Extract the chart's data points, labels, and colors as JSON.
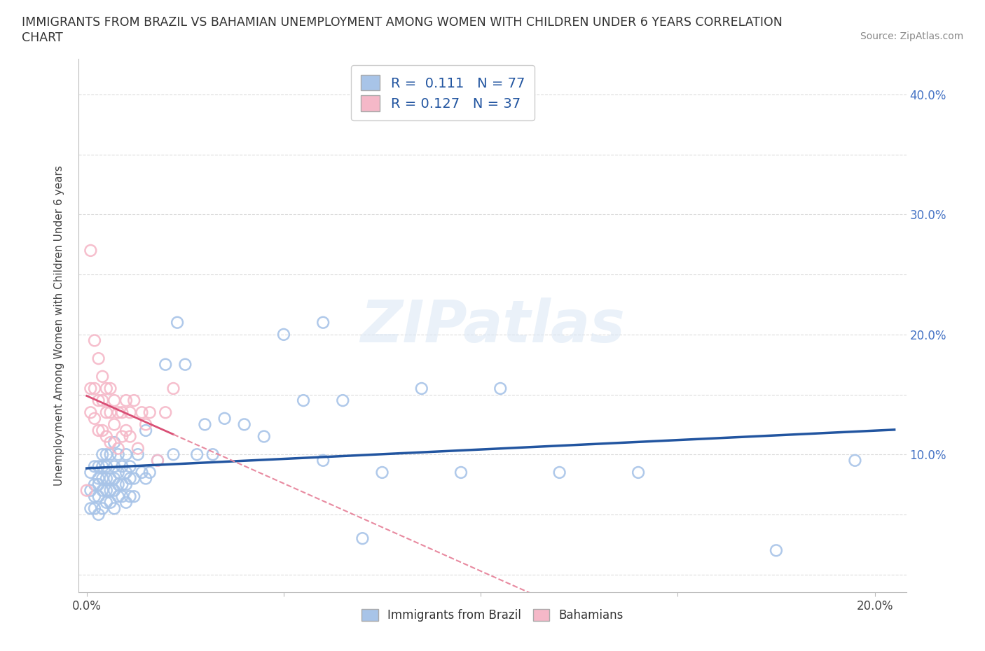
{
  "title_line1": "IMMIGRANTS FROM BRAZIL VS BAHAMIAN UNEMPLOYMENT AMONG WOMEN WITH CHILDREN UNDER 6 YEARS CORRELATION",
  "title_line2": "CHART",
  "source_text": "Source: ZipAtlas.com",
  "ylabel": "Unemployment Among Women with Children Under 6 years",
  "xlim": [
    -0.002,
    0.208
  ],
  "ylim": [
    -0.015,
    0.43
  ],
  "blue_color": "#a8c4e8",
  "pink_color": "#f5b8c8",
  "blue_line_color": "#2255a0",
  "pink_line_color": "#d94f75",
  "pink_dash_color": "#e88aa0",
  "grid_color": "#d8d8d8",
  "background_color": "#ffffff",
  "tick_label_color": "#4472c4",
  "R_blue": 0.111,
  "N_blue": 77,
  "R_pink": 0.127,
  "N_pink": 37,
  "legend_labels": [
    "Immigrants from Brazil",
    "Bahamians"
  ],
  "watermark": "ZIPatlas",
  "blue_scatter_x": [
    0.001,
    0.001,
    0.001,
    0.002,
    0.002,
    0.002,
    0.002,
    0.003,
    0.003,
    0.003,
    0.003,
    0.003,
    0.004,
    0.004,
    0.004,
    0.004,
    0.004,
    0.005,
    0.005,
    0.005,
    0.005,
    0.005,
    0.006,
    0.006,
    0.006,
    0.006,
    0.007,
    0.007,
    0.007,
    0.007,
    0.007,
    0.008,
    0.008,
    0.008,
    0.008,
    0.009,
    0.009,
    0.009,
    0.01,
    0.01,
    0.01,
    0.01,
    0.011,
    0.011,
    0.011,
    0.012,
    0.012,
    0.013,
    0.014,
    0.015,
    0.015,
    0.016,
    0.018,
    0.02,
    0.022,
    0.023,
    0.025,
    0.028,
    0.03,
    0.032,
    0.035,
    0.04,
    0.045,
    0.05,
    0.055,
    0.06,
    0.06,
    0.065,
    0.07,
    0.075,
    0.085,
    0.095,
    0.105,
    0.12,
    0.14,
    0.175,
    0.195
  ],
  "blue_scatter_y": [
    0.055,
    0.07,
    0.085,
    0.055,
    0.065,
    0.075,
    0.09,
    0.05,
    0.065,
    0.075,
    0.08,
    0.09,
    0.055,
    0.07,
    0.08,
    0.09,
    0.1,
    0.06,
    0.07,
    0.08,
    0.09,
    0.1,
    0.06,
    0.07,
    0.08,
    0.1,
    0.055,
    0.07,
    0.08,
    0.09,
    0.11,
    0.065,
    0.075,
    0.085,
    0.1,
    0.065,
    0.075,
    0.09,
    0.06,
    0.075,
    0.085,
    0.1,
    0.065,
    0.08,
    0.09,
    0.065,
    0.08,
    0.1,
    0.085,
    0.12,
    0.08,
    0.085,
    0.095,
    0.175,
    0.1,
    0.21,
    0.175,
    0.1,
    0.125,
    0.1,
    0.13,
    0.125,
    0.115,
    0.2,
    0.145,
    0.095,
    0.21,
    0.145,
    0.03,
    0.085,
    0.155,
    0.085,
    0.155,
    0.085,
    0.085,
    0.02,
    0.095
  ],
  "pink_scatter_x": [
    0.0,
    0.001,
    0.001,
    0.001,
    0.002,
    0.002,
    0.002,
    0.003,
    0.003,
    0.003,
    0.004,
    0.004,
    0.004,
    0.005,
    0.005,
    0.005,
    0.006,
    0.006,
    0.006,
    0.007,
    0.007,
    0.008,
    0.008,
    0.009,
    0.009,
    0.01,
    0.01,
    0.011,
    0.011,
    0.012,
    0.013,
    0.014,
    0.015,
    0.016,
    0.018,
    0.02,
    0.022
  ],
  "pink_scatter_y": [
    0.07,
    0.135,
    0.155,
    0.27,
    0.13,
    0.155,
    0.195,
    0.12,
    0.145,
    0.18,
    0.12,
    0.145,
    0.165,
    0.115,
    0.135,
    0.155,
    0.11,
    0.135,
    0.155,
    0.125,
    0.145,
    0.105,
    0.135,
    0.115,
    0.135,
    0.12,
    0.145,
    0.115,
    0.135,
    0.145,
    0.105,
    0.135,
    0.125,
    0.135,
    0.095,
    0.135,
    0.155
  ],
  "x_tick_positions": [
    0.0,
    0.05,
    0.1,
    0.15,
    0.2
  ],
  "x_tick_labels": [
    "0.0%",
    "",
    "",
    "",
    "20.0%"
  ],
  "y_tick_positions": [
    0.0,
    0.05,
    0.1,
    0.15,
    0.2,
    0.25,
    0.3,
    0.35,
    0.4
  ],
  "y_tick_labels_right": [
    "",
    "",
    "10.0%",
    "",
    "20.0%",
    "",
    "30.0%",
    "",
    "40.0%"
  ]
}
